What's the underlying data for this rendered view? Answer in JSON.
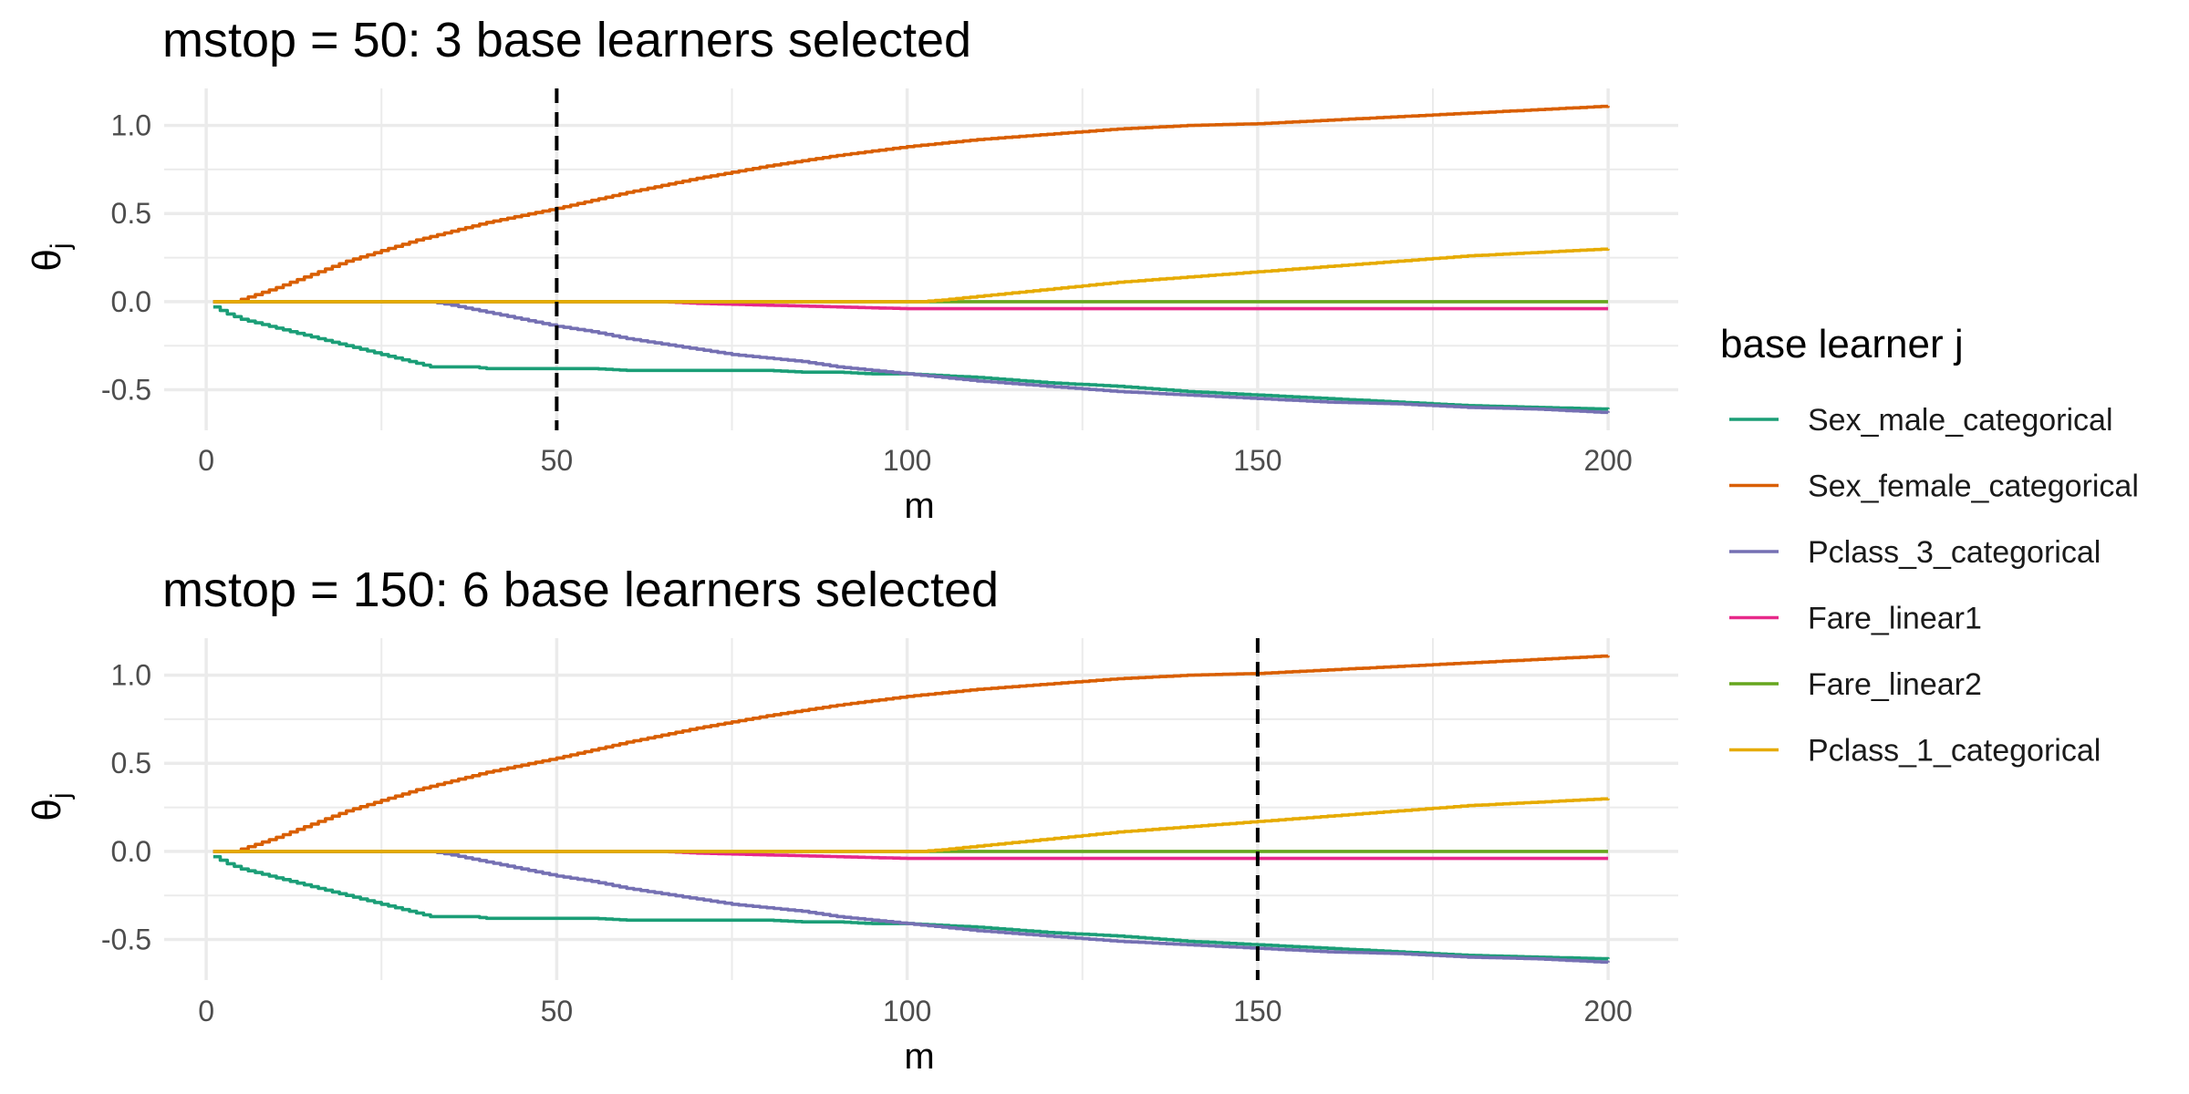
{
  "chart_data": [
    {
      "type": "line",
      "title": "mstop = 50: 3 base learners selected",
      "xlabel": "m",
      "ylabel": "θ",
      "ylabel_sub": "j",
      "xlim": [
        -6,
        210
      ],
      "ylim": [
        -0.73,
        1.21
      ],
      "x_ticks": [
        0,
        50,
        100,
        150,
        200
      ],
      "y_ticks": [
        -0.5,
        0.0,
        0.5,
        1.0
      ],
      "x_tick_labels": [
        "0",
        "50",
        "100",
        "150",
        "200"
      ],
      "y_tick_labels": [
        "-0.5",
        "0.0",
        "0.5",
        "1.0"
      ],
      "vline_x": 50,
      "grid": true
    },
    {
      "type": "line",
      "title": "mstop = 150: 6 base learners selected",
      "xlabel": "m",
      "ylabel": "θ",
      "ylabel_sub": "j",
      "xlim": [
        -6,
        210
      ],
      "ylim": [
        -0.73,
        1.21
      ],
      "x_ticks": [
        0,
        50,
        100,
        150,
        200
      ],
      "y_ticks": [
        -0.5,
        0.0,
        0.5,
        1.0
      ],
      "x_tick_labels": [
        "0",
        "50",
        "100",
        "150",
        "200"
      ],
      "y_tick_labels": [
        "-0.5",
        "0.0",
        "0.5",
        "1.0"
      ],
      "vline_x": 150,
      "grid": true
    }
  ],
  "series": [
    {
      "name": "Sex_male_categorical",
      "color": "#1b9e77",
      "x": [
        1,
        3,
        5,
        8,
        12,
        16,
        20,
        25,
        28,
        30,
        32,
        36,
        38,
        40,
        45,
        50,
        55,
        60,
        65,
        70,
        75,
        80,
        85,
        90,
        95,
        100,
        105,
        110,
        120,
        130,
        140,
        150,
        160,
        170,
        180,
        190,
        200
      ],
      "y": [
        -0.03,
        -0.07,
        -0.1,
        -0.13,
        -0.17,
        -0.21,
        -0.25,
        -0.3,
        -0.33,
        -0.35,
        -0.37,
        -0.37,
        -0.37,
        -0.38,
        -0.38,
        -0.38,
        -0.38,
        -0.39,
        -0.39,
        -0.39,
        -0.39,
        -0.39,
        -0.4,
        -0.4,
        -0.41,
        -0.41,
        -0.42,
        -0.43,
        -0.46,
        -0.48,
        -0.51,
        -0.53,
        -0.55,
        -0.57,
        -0.59,
        -0.6,
        -0.61
      ]
    },
    {
      "name": "Sex_female_categorical",
      "color": "#d95f02",
      "x": [
        1,
        4,
        10,
        20,
        30,
        40,
        50,
        60,
        70,
        80,
        90,
        100,
        110,
        120,
        130,
        140,
        150,
        160,
        170,
        180,
        190,
        200
      ],
      "y": [
        0.0,
        0.0,
        0.08,
        0.23,
        0.35,
        0.45,
        0.53,
        0.62,
        0.7,
        0.77,
        0.83,
        0.88,
        0.92,
        0.95,
        0.98,
        1.0,
        1.01,
        1.03,
        1.05,
        1.07,
        1.09,
        1.11
      ]
    },
    {
      "name": "Pclass_3_categorical",
      "color": "#7570b3",
      "x": [
        1,
        32,
        35,
        40,
        45,
        50,
        55,
        60,
        65,
        70,
        75,
        80,
        85,
        90,
        95,
        100,
        110,
        120,
        130,
        140,
        150,
        160,
        170,
        180,
        190,
        200
      ],
      "y": [
        0.0,
        0.0,
        -0.02,
        -0.06,
        -0.1,
        -0.14,
        -0.17,
        -0.21,
        -0.24,
        -0.27,
        -0.3,
        -0.32,
        -0.34,
        -0.37,
        -0.39,
        -0.41,
        -0.45,
        -0.48,
        -0.51,
        -0.53,
        -0.55,
        -0.57,
        -0.58,
        -0.6,
        -0.61,
        -0.63
      ]
    },
    {
      "name": "Fare_linear1",
      "color": "#e7298a",
      "x": [
        1,
        65,
        70,
        75,
        80,
        85,
        90,
        95,
        100,
        200
      ],
      "y": [
        0.0,
        0.0,
        -0.01,
        -0.015,
        -0.02,
        -0.025,
        -0.03,
        -0.035,
        -0.04,
        -0.04
      ]
    },
    {
      "name": "Fare_linear2",
      "color": "#66a61e",
      "x": [
        1,
        200
      ],
      "y": [
        0.0,
        0.0
      ]
    },
    {
      "name": "Pclass_1_categorical",
      "color": "#e6ab02",
      "x": [
        1,
        102,
        105,
        110,
        120,
        130,
        140,
        150,
        160,
        170,
        180,
        190,
        200
      ],
      "y": [
        0.0,
        0.0,
        0.01,
        0.03,
        0.07,
        0.11,
        0.14,
        0.17,
        0.2,
        0.23,
        0.26,
        0.28,
        0.3
      ]
    }
  ],
  "legend": {
    "title": "base learner j",
    "position": "right"
  }
}
